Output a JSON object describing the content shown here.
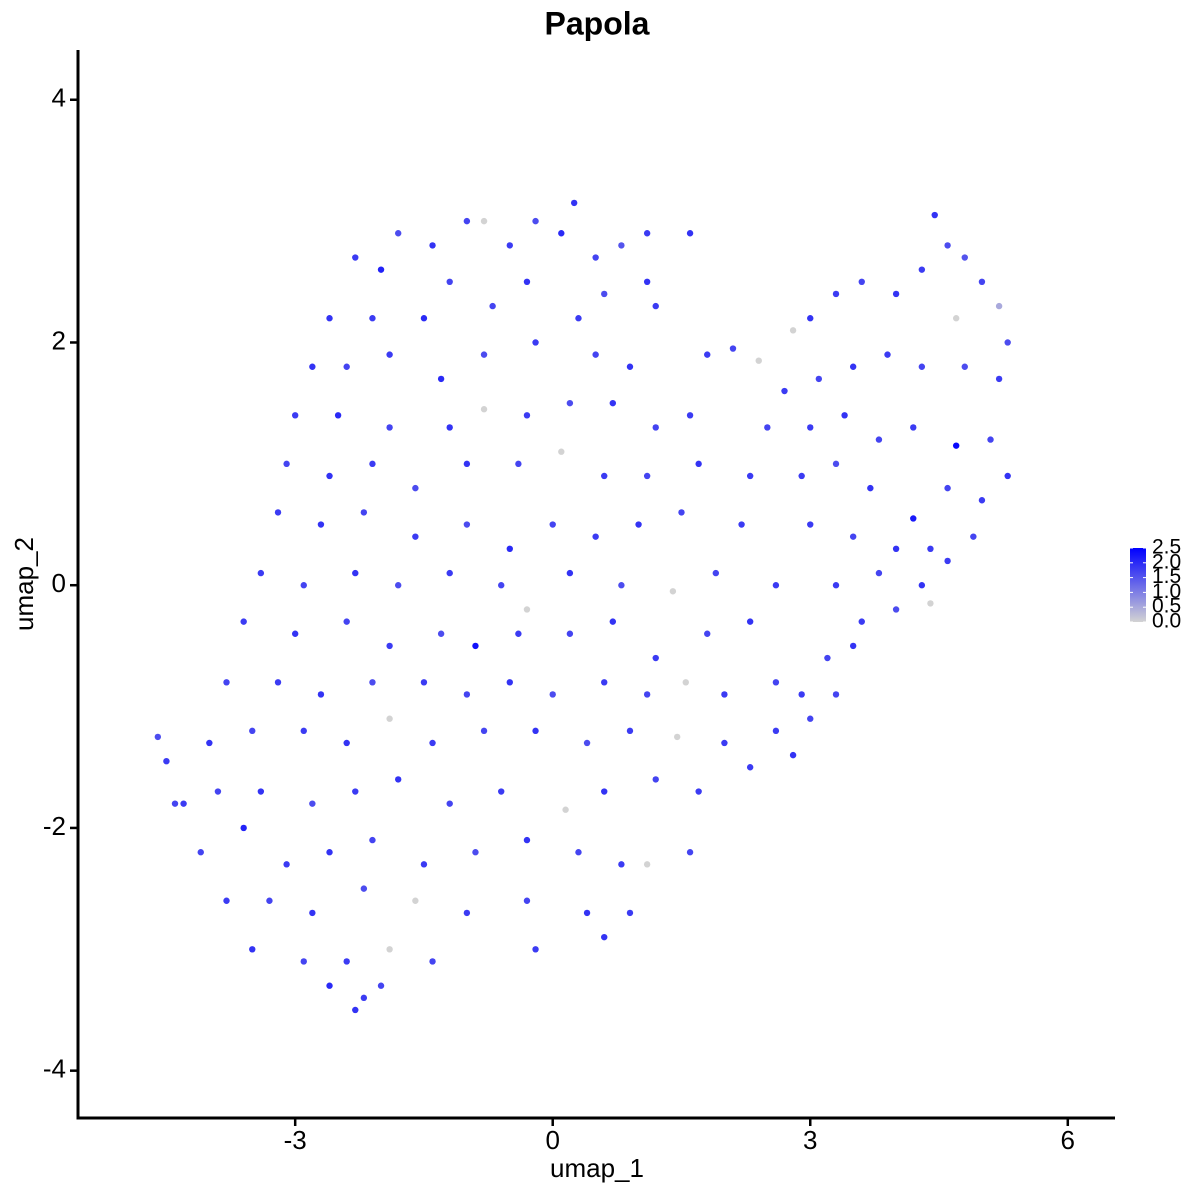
{
  "chart_data": {
    "type": "scatter",
    "title": "Papola",
    "xlabel": "umap_1",
    "ylabel": "umap_2",
    "xlim": [
      -5.53,
      6.55
    ],
    "ylim": [
      -4.39,
      4.41
    ],
    "xticks": [
      -3,
      0,
      3,
      6
    ],
    "yticks": [
      -4,
      -2,
      0,
      2,
      4
    ],
    "color_low": "#d3d3d3",
    "color_high": "#0000ff",
    "colorlim": [
      0,
      2.5
    ],
    "color_ticks": [
      {
        "value": 0,
        "label": "0.0"
      },
      {
        "value": 0.5,
        "label": "0.5"
      },
      {
        "value": 1,
        "label": "1.0"
      },
      {
        "value": 1.5,
        "label": "1.5"
      },
      {
        "value": 2,
        "label": "2.0"
      },
      {
        "value": 2.5,
        "label": "2.5"
      }
    ],
    "legend": "right",
    "x": [
      -2.3,
      -1.8,
      -1.4,
      -1.0,
      -0.8,
      -0.5,
      -0.2,
      0.1,
      0.25,
      0.5,
      0.8,
      1.1,
      1.6,
      -2.0,
      -1.2,
      -0.3,
      0.6,
      1.2,
      -2.6,
      -2.1,
      -1.5,
      -0.7,
      0.3,
      1.1,
      -2.8,
      -2.4,
      -1.9,
      -1.3,
      -0.8,
      -0.2,
      0.5,
      0.9,
      -3.0,
      -2.5,
      -1.9,
      -1.2,
      -0.8,
      -0.3,
      0.2,
      0.7,
      1.2,
      1.6,
      -3.1,
      -2.6,
      -2.1,
      -1.6,
      -1.0,
      -0.4,
      0.1,
      0.6,
      1.1,
      1.7,
      2.3,
      -3.2,
      -2.7,
      -2.2,
      -1.6,
      -1.0,
      -0.5,
      0.0,
      0.5,
      1.0,
      1.5,
      2.2,
      -3.4,
      -2.9,
      -2.3,
      -1.8,
      -1.2,
      -0.6,
      -0.3,
      0.2,
      0.8,
      1.4,
      1.9,
      2.6,
      -3.6,
      -3.0,
      -2.4,
      -1.9,
      -1.3,
      -0.9,
      -0.4,
      0.2,
      0.7,
      1.2,
      1.8,
      2.3,
      -3.8,
      -3.2,
      -2.7,
      -2.1,
      -1.5,
      -1.0,
      -0.5,
      0.0,
      0.6,
      1.1,
      1.55,
      2.0,
      2.6,
      -4.6,
      -4.5,
      -4.0,
      -3.5,
      -2.9,
      -2.4,
      -1.9,
      -1.4,
      -0.8,
      -0.2,
      0.4,
      0.9,
      1.45,
      2.0,
      -4.3,
      -3.9,
      -3.4,
      -2.8,
      -2.3,
      -1.8,
      -1.2,
      -0.6,
      0.15,
      0.6,
      1.2,
      1.7,
      -4.1,
      -3.6,
      -3.1,
      -2.6,
      -2.1,
      -1.5,
      -0.9,
      -0.3,
      0.3,
      0.8,
      1.1,
      1.6,
      -3.8,
      -3.3,
      -2.8,
      -2.2,
      -1.6,
      -1.0,
      -0.3,
      0.4,
      0.9,
      -3.5,
      -2.9,
      -2.4,
      -1.9,
      -1.4,
      -0.2,
      0.6,
      -2.6,
      -2.2,
      -2.0,
      -2.3,
      -4.4,
      1.8,
      2.1,
      2.4,
      2.8,
      3.0,
      3.3,
      3.6,
      4.0,
      4.3,
      4.45,
      4.6,
      4.8,
      5.0,
      5.2,
      5.3,
      4.7,
      2.7,
      3.1,
      3.5,
      3.9,
      4.3,
      4.8,
      5.2,
      2.5,
      3.0,
      3.4,
      3.8,
      4.2,
      4.7,
      5.1,
      2.9,
      3.3,
      3.7,
      4.2,
      4.6,
      5.0,
      5.3,
      3.0,
      3.5,
      4.0,
      4.4,
      4.9,
      3.3,
      3.8,
      4.3,
      4.6,
      4.4,
      3.6,
      4.0,
      3.2,
      3.5,
      2.9,
      3.3,
      2.6,
      3.0,
      2.8,
      2.3
    ],
    "values": [
      2.7,
      2.9,
      2.8,
      3.0,
      3.0,
      2.8,
      3.0,
      2.9,
      3.15,
      2.7,
      2.8,
      2.9,
      2.9,
      2.6,
      2.5,
      2.5,
      2.4,
      2.3,
      2.2,
      2.2,
      2.2,
      2.3,
      2.2,
      2.5,
      1.8,
      1.8,
      1.9,
      1.7,
      1.9,
      2.0,
      1.9,
      1.8,
      1.4,
      1.4,
      1.3,
      1.3,
      1.45,
      1.4,
      1.5,
      1.5,
      1.3,
      1.4,
      1.0,
      0.9,
      1.0,
      0.8,
      1.0,
      1.0,
      1.1,
      0.9,
      0.9,
      1.0,
      0.9,
      0.6,
      0.5,
      0.6,
      0.4,
      0.5,
      0.3,
      0.5,
      0.4,
      0.5,
      0.6,
      0.5,
      0.1,
      0.0,
      0.1,
      0.0,
      0.1,
      0.0,
      -0.2,
      0.1,
      0.0,
      -0.05,
      0.1,
      0.0,
      -0.3,
      -0.4,
      -0.3,
      -0.5,
      -0.4,
      -0.5,
      -0.4,
      -0.4,
      -0.3,
      -0.6,
      -0.4,
      -0.3,
      -0.8,
      -0.8,
      -0.9,
      -0.8,
      -0.8,
      -0.9,
      -0.8,
      -0.9,
      -0.8,
      -0.9,
      -0.8,
      -0.9,
      -0.8,
      -1.25,
      -1.45,
      -1.3,
      -1.2,
      -1.2,
      -1.3,
      -1.1,
      -1.3,
      -1.2,
      -1.2,
      -1.3,
      -1.2,
      -1.25,
      -1.3,
      -1.8,
      -1.7,
      -1.7,
      -1.8,
      -1.7,
      -1.6,
      -1.8,
      -1.7,
      -1.85,
      -1.7,
      -1.6,
      -1.7,
      -2.2,
      -2.0,
      -2.3,
      -2.2,
      -2.1,
      -2.3,
      -2.2,
      -2.1,
      -2.2,
      -2.3,
      -2.3,
      -2.2,
      -2.6,
      -2.6,
      -2.7,
      -2.5,
      -2.6,
      -2.7,
      -2.6,
      -2.7,
      -2.7,
      -3.0,
      -3.1,
      -3.1,
      -3.0,
      -3.1,
      -3.0,
      -2.9,
      -3.3,
      -3.4,
      -3.3,
      -3.5,
      -1.8,
      1.9,
      1.95,
      1.85,
      2.1,
      2.2,
      2.4,
      2.5,
      2.4,
      2.6,
      3.05,
      2.8,
      2.7,
      2.5,
      2.3,
      2.0,
      2.2,
      1.6,
      1.7,
      1.8,
      1.9,
      1.8,
      1.8,
      1.7,
      1.3,
      1.3,
      1.4,
      1.2,
      1.3,
      1.15,
      1.2,
      0.9,
      1.0,
      0.8,
      0.55,
      0.8,
      0.7,
      0.9,
      0.5,
      0.4,
      0.3,
      0.3,
      0.4,
      0.0,
      0.1,
      0.0,
      0.2,
      -0.15,
      -0.3,
      -0.2,
      -0.6,
      -0.5,
      -0.9,
      -0.9,
      -1.2,
      -1.1,
      -1.4,
      -1.5
    ],
    "color_values": [
      1.8,
      1.6,
      1.9,
      1.7,
      0,
      1.8,
      1.6,
      2.0,
      1.9,
      1.7,
      1.5,
      1.8,
      1.9,
      2.1,
      1.7,
      1.9,
      1.6,
      1.8,
      1.9,
      1.8,
      2.0,
      1.7,
      1.8,
      1.9,
      1.9,
      1.7,
      1.8,
      2.0,
      1.6,
      1.8,
      1.7,
      1.9,
      1.8,
      2.0,
      1.7,
      1.9,
      0,
      1.8,
      1.6,
      1.9,
      1.7,
      1.8,
      1.7,
      1.9,
      1.8,
      1.6,
      1.9,
      1.7,
      0,
      1.8,
      1.7,
      1.9,
      1.8,
      1.8,
      1.9,
      1.7,
      1.8,
      1.6,
      2.0,
      1.7,
      1.8,
      1.9,
      1.7,
      1.8,
      1.8,
      1.7,
      1.9,
      1.6,
      1.8,
      1.7,
      0,
      1.9,
      1.6,
      0,
      1.7,
      1.8,
      1.8,
      1.9,
      1.7,
      1.8,
      1.6,
      2.3,
      1.8,
      1.7,
      1.9,
      1.8,
      1.7,
      1.9,
      1.7,
      1.8,
      1.9,
      1.6,
      1.8,
      1.7,
      1.9,
      1.6,
      1.8,
      1.7,
      0,
      1.8,
      1.7,
      1.6,
      1.8,
      1.9,
      1.7,
      1.8,
      1.9,
      0,
      1.8,
      1.7,
      1.9,
      1.6,
      1.8,
      0,
      1.8,
      1.8,
      1.7,
      1.9,
      1.6,
      1.8,
      1.9,
      1.7,
      1.8,
      0,
      1.9,
      1.7,
      1.8,
      1.7,
      2.1,
      1.8,
      1.9,
      1.7,
      1.8,
      1.6,
      1.9,
      1.7,
      1.8,
      0,
      1.7,
      1.8,
      1.7,
      1.9,
      1.6,
      0,
      1.8,
      1.7,
      1.9,
      1.8,
      1.9,
      1.7,
      1.8,
      0,
      1.7,
      1.8,
      1.9,
      2.0,
      1.8,
      1.7,
      1.9,
      1.7,
      1.8,
      1.7,
      0,
      0,
      1.9,
      1.8,
      1.7,
      1.9,
      1.8,
      1.9,
      1.6,
      1.5,
      1.7,
      0.5,
      1.6,
      0,
      1.8,
      1.7,
      1.9,
      1.8,
      1.7,
      1.6,
      1.8,
      1.7,
      1.8,
      1.9,
      1.7,
      1.8,
      2.4,
      1.7,
      1.8,
      1.6,
      1.9,
      2.2,
      1.7,
      1.8,
      1.9,
      1.8,
      1.7,
      1.9,
      1.8,
      1.7,
      1.8,
      1.7,
      1.9,
      1.8,
      0,
      1.8,
      1.6,
      1.7,
      1.9,
      1.8,
      1.7,
      1.8,
      1.7,
      1.9,
      1.8
    ]
  }
}
